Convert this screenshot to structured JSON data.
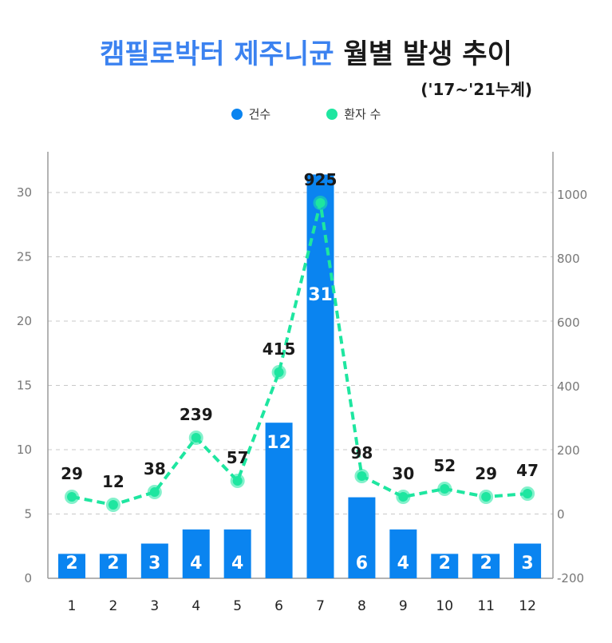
{
  "title": {
    "part1": "캠필로박터 제주니균",
    "part2": "월별 발생 추이"
  },
  "subtitle": "('17~'21누계)",
  "legend": {
    "cases": "건수",
    "patients": "환자 수"
  },
  "colors": {
    "bar": "#0a84f0",
    "line": "#1ee6a0",
    "title_blue": "#3b82f0"
  },
  "chart_data": {
    "type": "bar",
    "categories": [
      "1",
      "2",
      "3",
      "4",
      "5",
      "6",
      "7",
      "8",
      "9",
      "10",
      "11",
      "12"
    ],
    "series": [
      {
        "name": "건수",
        "type": "bar",
        "axis": "left",
        "values": [
          2,
          2,
          3,
          4,
          4,
          12,
          31,
          6,
          4,
          2,
          2,
          3
        ],
        "bar_heights": [
          1.9,
          1.9,
          2.7,
          3.8,
          3.8,
          12.1,
          31.4,
          6.3,
          3.8,
          1.9,
          1.9,
          2.7
        ]
      },
      {
        "name": "환자 수",
        "type": "line",
        "axis": "right",
        "style": "dashed",
        "values": [
          29,
          12,
          38,
          239,
          57,
          415,
          925,
          98,
          30,
          52,
          29,
          47
        ],
        "plot_values": [
          55,
          30,
          70,
          240,
          105,
          445,
          975,
          120,
          55,
          80,
          55,
          65
        ]
      }
    ],
    "y_left": {
      "ticks": [
        0,
        5,
        10,
        15,
        20,
        25,
        30
      ],
      "range": [
        0,
        33
      ]
    },
    "y_right": {
      "ticks": [
        -200,
        0,
        200,
        400,
        600,
        800,
        1000
      ],
      "range": [
        -200,
        1125
      ]
    },
    "grid": "dashed horizontal"
  }
}
